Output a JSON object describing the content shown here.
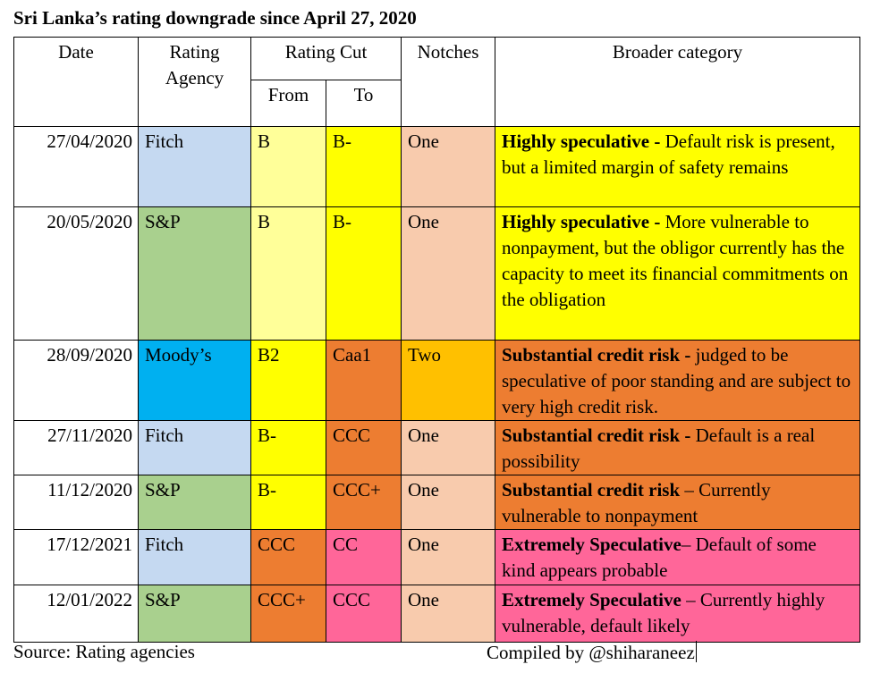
{
  "title": "Sri Lanka’s rating downgrade since April 27, 2020",
  "headers": {
    "date": "Date",
    "agency_line1": "Rating",
    "agency_line2": "Agency",
    "rating_cut": "Rating Cut",
    "from": "From",
    "to": "To",
    "notches": "Notches",
    "category": "Broader category"
  },
  "colors": {
    "fitch": "#c5d9f1",
    "sp": "#a9d08e",
    "moodys": "#00b0f0",
    "light_yellow": "#ffff99",
    "yellow": "#ffff00",
    "orange": "#ed7d31",
    "pink": "#ff6699",
    "peach": "#f8cbad",
    "gold": "#ffc000"
  },
  "rows": [
    {
      "date": "27/04/2020",
      "agency": "Fitch",
      "from": "B",
      "to": "B-",
      "notches": "One",
      "category_bold": "Highly speculative -",
      "category_text": " Default risk is present, but a limited margin of safety remains",
      "agency_color": "#c5d9f1",
      "from_color": "#ffff99",
      "to_color": "#ffff00",
      "notches_color": "#f8cbad",
      "category_color": "#ffff00"
    },
    {
      "date": "20/05/2020",
      "agency": "S&P",
      "from": "B",
      "to": "B-",
      "notches": "One",
      "category_bold": "Highly speculative -",
      "category_text": " More vulnerable to nonpayment, but the obligor currently has the capacity to meet its financial commitments on the obligation",
      "agency_color": "#a9d08e",
      "from_color": "#ffff99",
      "to_color": "#ffff00",
      "notches_color": "#f8cbad",
      "category_color": "#ffff00"
    },
    {
      "date": "28/09/2020",
      "agency": "Moody’s",
      "from": "B2",
      "to": "Caa1",
      "notches": "Two",
      "category_bold": "Substantial credit risk -",
      "category_text": " judged to be speculative of poor standing and are subject to very high credit risk.",
      "agency_color": "#00b0f0",
      "from_color": "#ffff00",
      "to_color": "#ed7d31",
      "notches_color": "#ffc000",
      "category_color": "#ed7d31"
    },
    {
      "date": "27/11/2020",
      "agency": "Fitch",
      "from": "B-",
      "to": "CCC",
      "notches": "One",
      "category_bold": "Substantial credit risk -",
      "category_text": " Default is a real possibility",
      "agency_color": "#c5d9f1",
      "from_color": "#ffff00",
      "to_color": "#ed7d31",
      "notches_color": "#f8cbad",
      "category_color": "#ed7d31"
    },
    {
      "date": "11/12/2020",
      "agency": "S&P",
      "from": "B-",
      "to": "CCC+",
      "notches": "One",
      "category_bold": "Substantial credit risk",
      "category_text": " – Currently vulnerable to nonpayment",
      "agency_color": "#a9d08e",
      "from_color": "#ffff00",
      "to_color": "#ed7d31",
      "notches_color": "#f8cbad",
      "category_color": "#ed7d31"
    },
    {
      "date": "17/12/2021",
      "agency": "Fitch",
      "from": "CCC",
      "to": "CC",
      "notches": "One",
      "category_bold": "Extremely Speculative",
      "category_text": "– Default of some kind appears probable",
      "agency_color": "#c5d9f1",
      "from_color": "#ed7d31",
      "to_color": "#ff6699",
      "notches_color": "#f8cbad",
      "category_color": "#ff6699"
    },
    {
      "date": "12/01/2022",
      "agency": "S&P",
      "from": "CCC+",
      "to": "CCC",
      "notches": "One",
      "category_bold": "Extremely Speculative",
      "category_text": " – Currently highly vulnerable, default likely",
      "agency_color": "#a9d08e",
      "from_color": "#ed7d31",
      "to_color": "#ff6699",
      "notches_color": "#f8cbad",
      "category_color": "#ff6699"
    }
  ],
  "footer": {
    "source": "Source: Rating agencies",
    "compiled": "Compiled by @shiharaneez"
  }
}
